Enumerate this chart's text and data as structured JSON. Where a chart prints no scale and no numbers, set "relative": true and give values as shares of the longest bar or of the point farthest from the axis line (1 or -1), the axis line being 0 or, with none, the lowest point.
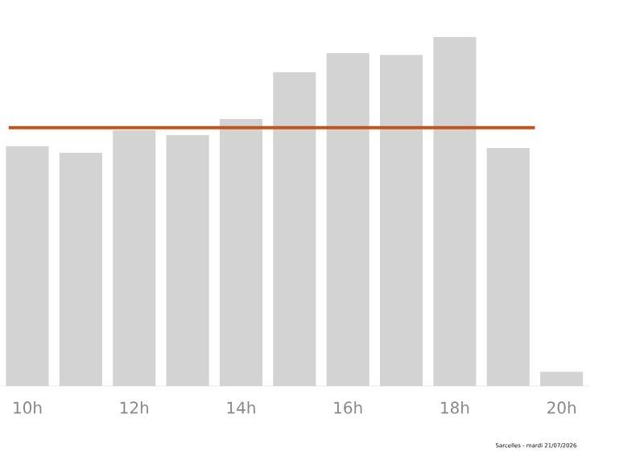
{
  "chart_data": {
    "type": "bar",
    "relative": true,
    "categories": [
      "10h",
      null,
      "12h",
      null,
      "14h",
      null,
      "16h",
      null,
      "18h",
      null,
      "20h"
    ],
    "values": [
      0.687,
      0.668,
      0.733,
      0.719,
      0.765,
      0.899,
      0.954,
      0.949,
      1,
      0.682,
      0.041
    ],
    "color": "#d3d3d3",
    "ref_lines": [
      {
        "axis": "y",
        "value": 0.74,
        "color": "#c0561a"
      }
    ],
    "annotations": [
      "Sarcelles - mardi 21/07/2026"
    ]
  }
}
